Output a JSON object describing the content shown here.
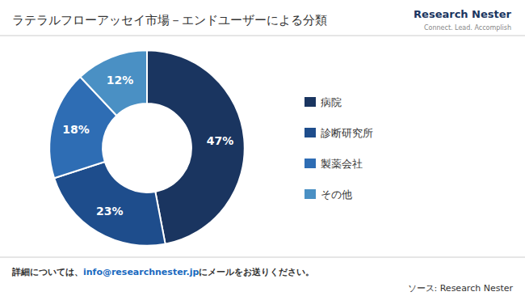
{
  "chart_data": {
    "type": "pie",
    "title": "ラテラルフローアッセイ市場－エンドユーザーによる分類",
    "categories": [
      "病院",
      "診断研究所",
      "製薬会社",
      "その他"
    ],
    "values": [
      47,
      23,
      18,
      12
    ],
    "value_labels": [
      "47%",
      "23%",
      "18%",
      "12%"
    ],
    "colors": [
      "#1a3560",
      "#1e4d8c",
      "#2e6db4",
      "#4a90c4"
    ],
    "data_labels": true,
    "legend": "right",
    "annotations": [
      "詳細については、",
      "info@researchnester.jp",
      "にメールをお送りください。",
      "ソース: Research Nester",
      "Research Nester",
      "Connect. Lead. Accomplish"
    ]
  }
}
